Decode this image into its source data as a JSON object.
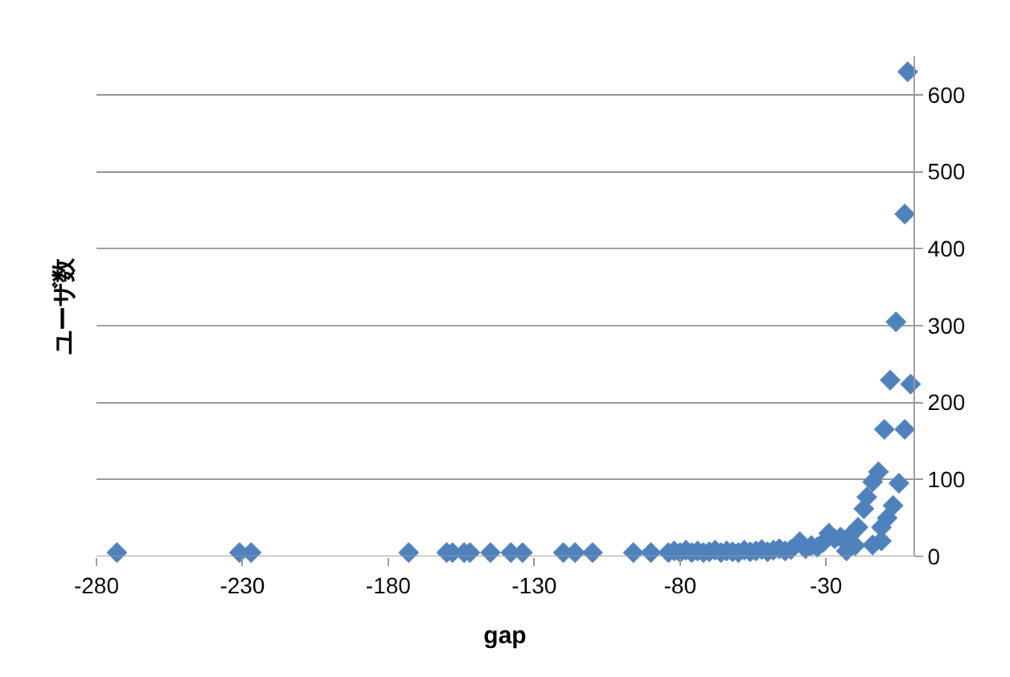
{
  "chart_data": {
    "type": "scatter",
    "xlabel": "gap",
    "ylabel": "ユーザ数",
    "xlim": [
      -280,
      0
    ],
    "ylim": [
      0,
      650
    ],
    "xticks": [
      -280,
      -230,
      -180,
      -130,
      -80,
      -30
    ],
    "yticks": [
      0,
      100,
      200,
      300,
      400,
      500,
      600
    ],
    "grid": "y",
    "marker": "diamond",
    "series": [
      {
        "color": "#4f81bd",
        "x": [
          -273,
          -231,
          -227,
          -173,
          -160,
          -158,
          -154,
          -152,
          -145,
          -138,
          -134,
          -120,
          -116,
          -110,
          -96,
          -90,
          -84,
          -82,
          -80,
          -78,
          -76,
          -74,
          -72,
          -70,
          -68,
          -66,
          -64,
          -62,
          -60,
          -58,
          -56,
          -54,
          -52,
          -50,
          -48,
          -46,
          -44,
          -42,
          -39,
          -37,
          -35,
          -33,
          -31,
          -29,
          -27,
          -25,
          -23,
          -22,
          -20,
          -19,
          -17,
          -16,
          -14,
          -14,
          -12,
          -11,
          -11,
          -9,
          -7,
          -5,
          -10,
          -8,
          -3,
          -1,
          -6,
          -3,
          -2
        ],
        "values": [
          5,
          5,
          5,
          5,
          5,
          5,
          5,
          5,
          5,
          5,
          5,
          5,
          5,
          5,
          5,
          5,
          5,
          7,
          5,
          8,
          5,
          7,
          5,
          6,
          8,
          5,
          7,
          6,
          5,
          8,
          6,
          7,
          9,
          6,
          8,
          10,
          7,
          9,
          19,
          10,
          14,
          12,
          18,
          30,
          23,
          25,
          7,
          26,
          14,
          38,
          62,
          77,
          97,
          15,
          110,
          38,
          20,
          50,
          66,
          95,
          165,
          229,
          165,
          224,
          305,
          445,
          630
        ]
      }
    ]
  }
}
